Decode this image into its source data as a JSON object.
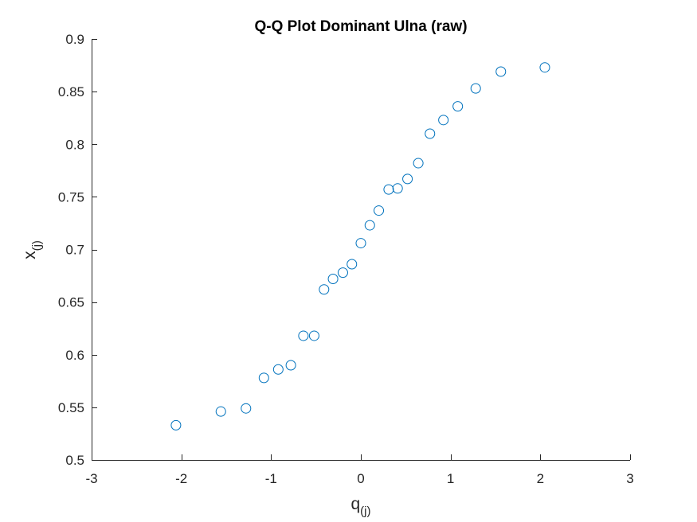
{
  "chart_data": {
    "type": "scatter",
    "title": "Q-Q Plot Dominant Ulna (raw)",
    "xlabel_main": "q",
    "xlabel_sub": "(j)",
    "ylabel_main": "x",
    "ylabel_sub": "(j)",
    "xlim": [
      -3,
      3
    ],
    "ylim": [
      0.5,
      0.9
    ],
    "xticks": [
      -3,
      -2,
      -1,
      0,
      1,
      2,
      3
    ],
    "yticks": [
      0.5,
      0.55,
      0.6,
      0.65,
      0.7,
      0.75,
      0.8,
      0.85,
      0.9
    ],
    "xtick_labels": [
      "-3",
      "-2",
      "-1",
      "0",
      "1",
      "2",
      "3"
    ],
    "ytick_labels": [
      "0.5",
      "0.55",
      "0.6",
      "0.65",
      "0.7",
      "0.75",
      "0.8",
      "0.85",
      "0.9"
    ],
    "grid": false,
    "marker": "open-circle",
    "marker_color": "#0072BD",
    "points": [
      {
        "x": -2.06,
        "y": 0.533
      },
      {
        "x": -1.56,
        "y": 0.546
      },
      {
        "x": -1.28,
        "y": 0.549
      },
      {
        "x": -1.08,
        "y": 0.578
      },
      {
        "x": -0.92,
        "y": 0.586
      },
      {
        "x": -0.78,
        "y": 0.59
      },
      {
        "x": -0.64,
        "y": 0.618
      },
      {
        "x": -0.52,
        "y": 0.618
      },
      {
        "x": -0.41,
        "y": 0.662
      },
      {
        "x": -0.31,
        "y": 0.672
      },
      {
        "x": -0.2,
        "y": 0.678
      },
      {
        "x": -0.1,
        "y": 0.686
      },
      {
        "x": 0.0,
        "y": 0.706
      },
      {
        "x": 0.1,
        "y": 0.723
      },
      {
        "x": 0.2,
        "y": 0.737
      },
      {
        "x": 0.31,
        "y": 0.757
      },
      {
        "x": 0.41,
        "y": 0.758
      },
      {
        "x": 0.52,
        "y": 0.767
      },
      {
        "x": 0.64,
        "y": 0.782
      },
      {
        "x": 0.77,
        "y": 0.81
      },
      {
        "x": 0.92,
        "y": 0.823
      },
      {
        "x": 1.08,
        "y": 0.836
      },
      {
        "x": 1.28,
        "y": 0.853
      },
      {
        "x": 1.56,
        "y": 0.869
      },
      {
        "x": 2.05,
        "y": 0.873
      }
    ]
  }
}
